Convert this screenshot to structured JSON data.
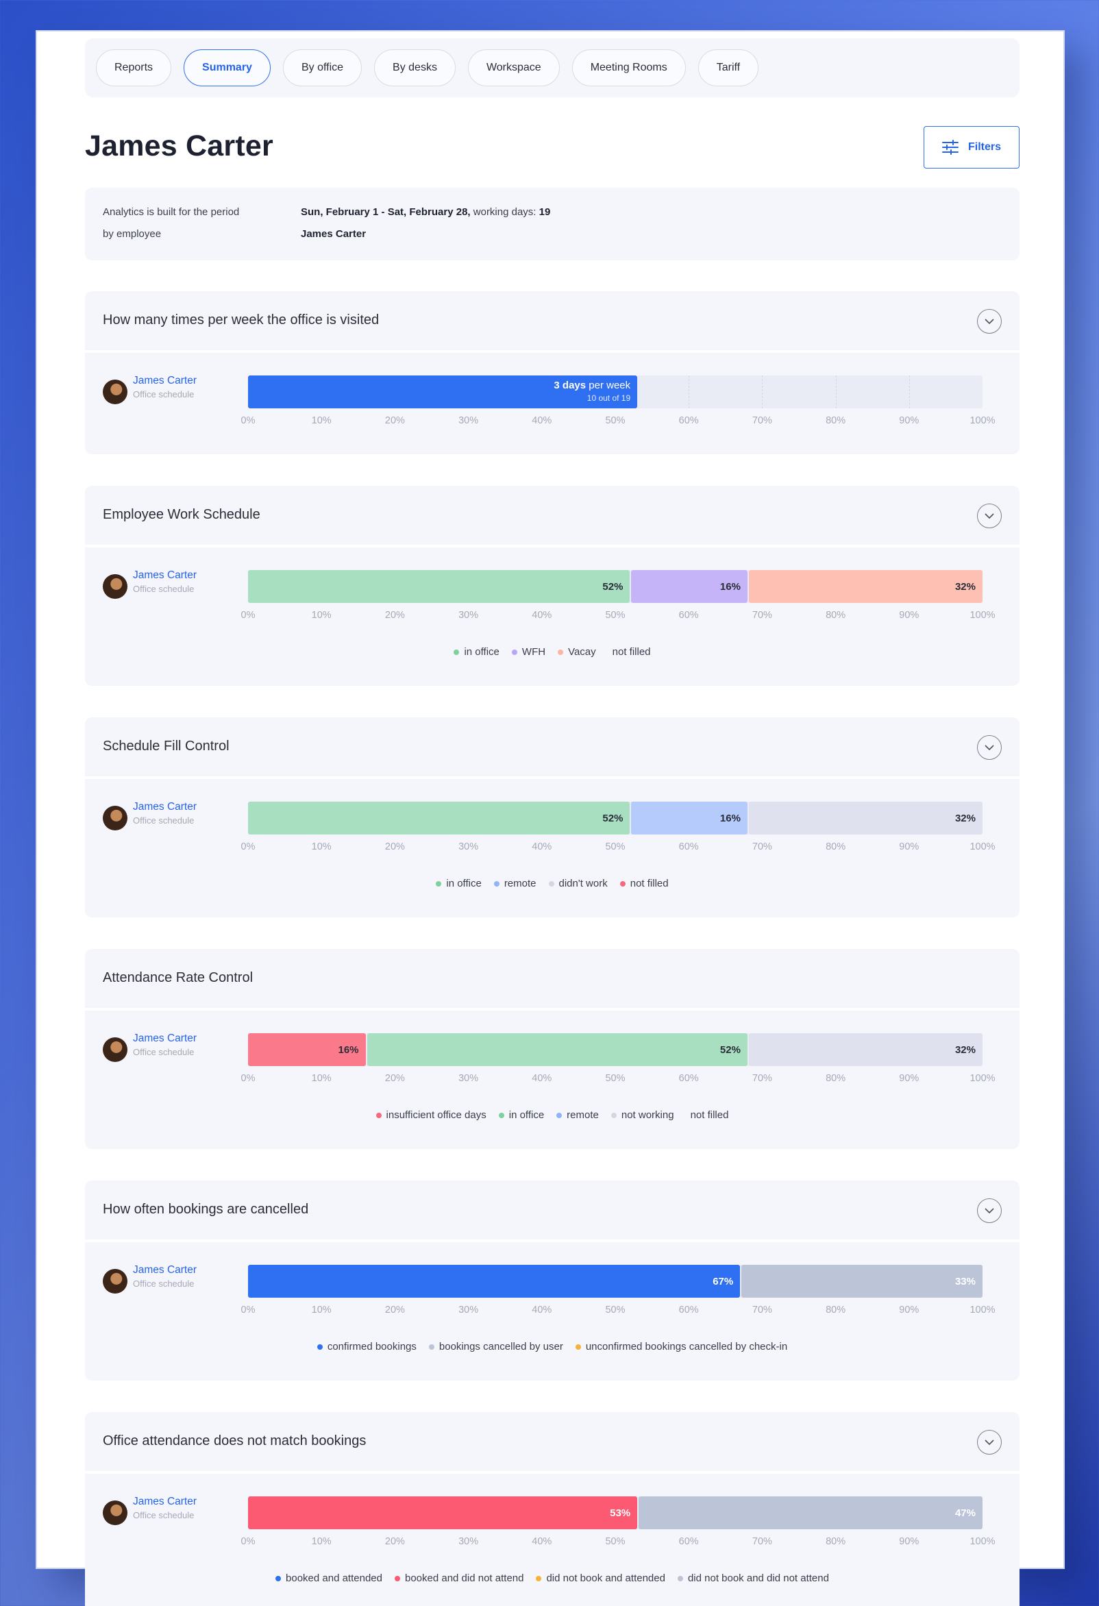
{
  "tabs": [
    {
      "label": "Reports",
      "active": false
    },
    {
      "label": "Summary",
      "active": true
    },
    {
      "label": "By office",
      "active": false
    },
    {
      "label": "By desks",
      "active": false
    },
    {
      "label": "Workspace",
      "active": false
    },
    {
      "label": "Meeting Rooms",
      "active": false
    },
    {
      "label": "Tariff",
      "active": false
    }
  ],
  "page_title": "James Carter",
  "filters_label": "Filters",
  "info": {
    "period_label": "Analytics is built for the period",
    "by_label": "by employee",
    "period_value": "Sun, February 1 - Sat, February 28,",
    "working_days_label": "working days:",
    "working_days_value": "19",
    "employee_value": "James Carter"
  },
  "employee": {
    "name": "James Carter",
    "subtitle": "Office schedule"
  },
  "ticks": [
    "0%",
    "10%",
    "20%",
    "30%",
    "40%",
    "50%",
    "60%",
    "70%",
    "80%",
    "90%",
    "100%"
  ],
  "colors": {
    "blue": "#2f6ff2",
    "green": "#a8dfc0",
    "purple": "#c5b5f8",
    "salmon": "#fdc0b2",
    "light_blue": "#b4cbfb",
    "grey": "#dfe2ee",
    "red": "#fa7a8b",
    "slate": "#bcc4d8",
    "pink_red": "#fc5a73",
    "orange": "#f6b13b"
  },
  "sections": [
    {
      "title": "How many times per week the office is visited",
      "collapsible": true,
      "type": "visits",
      "visits": {
        "value_bold": "3 days",
        "value_rest": " per week",
        "sub": "10 out of 19",
        "fraction": 0.53,
        "color": "#2f6ff2"
      },
      "segments": [],
      "legend": []
    },
    {
      "title": "Employee Work Schedule",
      "collapsible": true,
      "type": "stacked",
      "segments": [
        {
          "label": "52%",
          "value": 52,
          "color": "#a8dfc0",
          "text": "dark"
        },
        {
          "label": "16%",
          "value": 16,
          "color": "#c5b5f8",
          "text": "dark"
        },
        {
          "label": "32%",
          "value": 32,
          "color": "#fdc0b2",
          "text": "dark"
        }
      ],
      "legend": [
        {
          "label": "in office",
          "color": "#7fcf9f"
        },
        {
          "label": "WFH",
          "color": "#b9a6f5"
        },
        {
          "label": "Vacay",
          "color": "#fbb5a3"
        },
        {
          "label": "not filled",
          "color": ""
        }
      ]
    },
    {
      "title": "Schedule Fill Control",
      "collapsible": true,
      "type": "stacked",
      "segments": [
        {
          "label": "52%",
          "value": 52,
          "color": "#a8dfc0",
          "text": "dark"
        },
        {
          "label": "16%",
          "value": 16,
          "color": "#b4cbfb",
          "text": "dark"
        },
        {
          "label": "32%",
          "value": 32,
          "color": "#dfe2ee",
          "text": "dark"
        }
      ],
      "legend": [
        {
          "label": "in office",
          "color": "#7fcf9f"
        },
        {
          "label": "remote",
          "color": "#90b4f8"
        },
        {
          "label": "didn't work",
          "color": "#d3d7e3"
        },
        {
          "label": "not filled",
          "color": "#f6687e"
        }
      ]
    },
    {
      "title": "Attendance Rate Control",
      "collapsible": false,
      "type": "stacked",
      "segments": [
        {
          "label": "16%",
          "value": 16,
          "color": "#fa7a8b",
          "text": "dark"
        },
        {
          "label": "52%",
          "value": 52,
          "color": "#a8dfc0",
          "text": "dark"
        },
        {
          "label": "32%",
          "value": 32,
          "color": "#dfe2ee",
          "text": "dark"
        }
      ],
      "legend": [
        {
          "label": "insufficient office days",
          "color": "#f6687e"
        },
        {
          "label": "in office",
          "color": "#7fcf9f"
        },
        {
          "label": "remote",
          "color": "#90b4f8"
        },
        {
          "label": "not working",
          "color": "#d3d7e3"
        },
        {
          "label": "not filled",
          "color": ""
        }
      ]
    },
    {
      "title": "How often bookings are cancelled",
      "collapsible": true,
      "type": "stacked",
      "segments": [
        {
          "label": "67%",
          "value": 67,
          "color": "#2f6ff2",
          "text": "light"
        },
        {
          "label": "33%",
          "value": 33,
          "color": "#bcc4d8",
          "text": "light"
        }
      ],
      "legend": [
        {
          "label": "confirmed bookings",
          "color": "#2f6ff2"
        },
        {
          "label": "bookings cancelled by user",
          "color": "#bcc4d8"
        },
        {
          "label": "unconfirmed bookings cancelled by check-in",
          "color": "#f6b13b"
        }
      ]
    },
    {
      "title": "Office attendance does not match bookings",
      "collapsible": true,
      "type": "stacked",
      "segments": [
        {
          "label": "53%",
          "value": 53,
          "color": "#fc5a73",
          "text": "light"
        },
        {
          "label": "47%",
          "value": 47,
          "color": "#bcc4d8",
          "text": "light"
        }
      ],
      "legend": [
        {
          "label": "booked and attended",
          "color": "#2f6ff2"
        },
        {
          "label": "booked and did not attend",
          "color": "#fc5a73"
        },
        {
          "label": "did not book and attended",
          "color": "#f6b13b"
        },
        {
          "label": "did not book and did not attend",
          "color": "#bcc4d8"
        }
      ]
    }
  ]
}
